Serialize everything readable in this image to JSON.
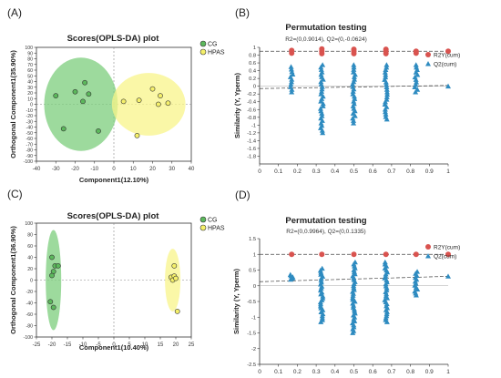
{
  "colors": {
    "cg_fill": "#5cb85c",
    "cg_ellipse": "#7ccd7c",
    "hpas_fill": "#f5f06a",
    "hpas_ellipse": "#f8f48a",
    "r2_marker": "#d9534f",
    "q2_marker": "#2e8bc0",
    "axis": "#333333",
    "refline": "#888888"
  },
  "chart_data": [
    {
      "panel_label": "(A)",
      "type": "scatter",
      "title": "Scores(OPLS-DA) plot",
      "xlabel": "Component1(12.10%)",
      "ylabel": "Orthogonal Component1(35.90%)",
      "xlim": [
        -40,
        40
      ],
      "ylim": [
        -100,
        100
      ],
      "xticks": [
        -40,
        -30,
        -20,
        -10,
        0,
        10,
        20,
        30,
        40
      ],
      "yticks": [
        -100,
        -90,
        -80,
        -70,
        -60,
        -50,
        -40,
        -30,
        -20,
        -10,
        0,
        10,
        20,
        30,
        40,
        50,
        60,
        70,
        80,
        90,
        100
      ],
      "legend_position": "top-right",
      "series": [
        {
          "name": "CG",
          "color": "green",
          "points": [
            [
              -30,
              15
            ],
            [
              -20,
              22
            ],
            [
              -15,
              38
            ],
            [
              -13,
              18
            ],
            [
              -16,
              5
            ],
            [
              -26,
              -43
            ],
            [
              -8,
              -47
            ]
          ],
          "ellipse": {
            "cx": -17,
            "cy": 0,
            "rx": 19,
            "ry": 82
          }
        },
        {
          "name": "HPAS",
          "color": "yellow",
          "points": [
            [
              5,
              5
            ],
            [
              13,
              7
            ],
            [
              20,
              27
            ],
            [
              24,
              15
            ],
            [
              23,
              0
            ],
            [
              28,
              2
            ],
            [
              12,
              -55
            ]
          ],
          "ellipse": {
            "cx": 18,
            "cy": 0,
            "rx": 19,
            "ry": 55
          }
        }
      ]
    },
    {
      "panel_label": "(B)",
      "type": "scatter",
      "title": "Permutation testing",
      "subtitle": "R2=(0,0.9014), Q2=(0,-0.0624)",
      "xlabel": "",
      "ylabel": "Similarity (Y, Yperm)",
      "xlim": [
        0,
        1
      ],
      "ylim": [
        -2,
        1
      ],
      "xticks": [
        0,
        0.1,
        0.2,
        0.3,
        0.4,
        0.5,
        0.6,
        0.7,
        0.8,
        0.9,
        1
      ],
      "yticks": [
        -1.8,
        -1.6,
        -1.4,
        -1.2,
        -1,
        -0.8,
        -0.6,
        -0.4,
        -0.2,
        0,
        0.2,
        0.4,
        0.6,
        0.8,
        1
      ],
      "legend_position": "top-right",
      "series": [
        {
          "name": "R2Y(cum)",
          "marker": "circle",
          "x": [
            0.17,
            0.33,
            0.5,
            0.67,
            0.83,
            1.0
          ],
          "points": [
            [
              0.17,
              0.85
            ],
            [
              0.17,
              0.92
            ],
            [
              0.33,
              0.84
            ],
            [
              0.33,
              0.9
            ],
            [
              0.33,
              0.96
            ],
            [
              0.5,
              0.84
            ],
            [
              0.5,
              0.9
            ],
            [
              0.5,
              0.95
            ],
            [
              0.67,
              0.84
            ],
            [
              0.67,
              0.9
            ],
            [
              0.67,
              0.95
            ],
            [
              0.83,
              0.85
            ],
            [
              0.83,
              0.9
            ],
            [
              1.0,
              0.9
            ]
          ],
          "trend": [
            [
              0,
              0.9
            ],
            [
              1,
              0.9
            ]
          ]
        },
        {
          "name": "Q2(cum)",
          "marker": "triangle",
          "columns": [
            {
              "x": 0.17,
              "min": -0.15,
              "max": 0.5
            },
            {
              "x": 0.33,
              "min": -1.2,
              "max": 0.55
            },
            {
              "x": 0.5,
              "min": -0.95,
              "max": 0.55
            },
            {
              "x": 0.67,
              "min": -0.85,
              "max": 0.55
            },
            {
              "x": 0.83,
              "min": -0.15,
              "max": 0.55
            }
          ],
          "points": [
            [
              1.0,
              0.0
            ]
          ],
          "trend": [
            [
              0,
              -0.06
            ],
            [
              1,
              0.02
            ]
          ]
        }
      ]
    },
    {
      "panel_label": "(C)",
      "type": "scatter",
      "title": "Scores(OPLS-DA) plot",
      "xlabel": "Component1(10.40%)",
      "ylabel": "Orthogonal Component1(36.90%)",
      "xlim": [
        -25,
        25
      ],
      "ylim": [
        -100,
        100
      ],
      "xticks": [
        -25,
        -20,
        -15,
        -10,
        -5,
        0,
        5,
        10,
        15,
        20,
        25
      ],
      "yticks": [
        -100,
        -80,
        -60,
        -40,
        -20,
        0,
        20,
        40,
        60,
        80,
        100
      ],
      "legend_position": "top-right",
      "series": [
        {
          "name": "CG",
          "color": "green",
          "points": [
            [
              -20,
              40
            ],
            [
              -19,
              25
            ],
            [
              -19.5,
              15
            ],
            [
              -18,
              25
            ],
            [
              -20,
              8
            ],
            [
              -20.5,
              -38
            ],
            [
              -19.5,
              -48
            ]
          ],
          "ellipse": {
            "cx": -19.5,
            "cy": 0,
            "rx": 2.5,
            "ry": 88
          }
        },
        {
          "name": "HPAS",
          "color": "yellow",
          "points": [
            [
              19.5,
              25
            ],
            [
              18.5,
              5
            ],
            [
              19,
              0
            ],
            [
              19.5,
              7
            ],
            [
              20,
              3
            ],
            [
              20.5,
              -55
            ]
          ],
          "ellipse": {
            "cx": 19,
            "cy": 0,
            "rx": 2.5,
            "ry": 55
          }
        }
      ]
    },
    {
      "panel_label": "(D)",
      "type": "scatter",
      "title": "Permutation testing",
      "subtitle": "R2=(0,0.9964), Q2=(0,0.1335)",
      "xlabel": "",
      "ylabel": "Similarity (Y, Yperm)",
      "xlim": [
        0,
        1
      ],
      "ylim": [
        -2.5,
        1.5
      ],
      "xticks": [
        0,
        0.1,
        0.2,
        0.3,
        0.4,
        0.5,
        0.6,
        0.7,
        0.8,
        0.9,
        1
      ],
      "yticks": [
        -2.5,
        -2,
        -1.5,
        -1,
        -0.5,
        0,
        0.5,
        1,
        1.5
      ],
      "legend_position": "top-right",
      "series": [
        {
          "name": "R2Y(cum)",
          "marker": "circle",
          "points": [
            [
              0.17,
              1.0
            ],
            [
              0.33,
              1.0
            ],
            [
              0.5,
              1.0
            ],
            [
              0.67,
              1.0
            ],
            [
              0.83,
              1.0
            ],
            [
              1.0,
              1.0
            ]
          ],
          "trend": [
            [
              0,
              1.0
            ],
            [
              1,
              1.0
            ]
          ]
        },
        {
          "name": "Q2(cum)",
          "marker": "triangle",
          "columns": [
            {
              "x": 0.17,
              "min": 0.2,
              "max": 0.35
            },
            {
              "x": 0.33,
              "min": -1.15,
              "max": 0.55
            },
            {
              "x": 0.5,
              "min": -1.5,
              "max": 0.75
            },
            {
              "x": 0.67,
              "min": -1.15,
              "max": 0.75
            },
            {
              "x": 0.83,
              "min": -0.3,
              "max": 0.45
            }
          ],
          "points": [
            [
              1.0,
              0.3
            ]
          ],
          "trend": [
            [
              0,
              0.13
            ],
            [
              1,
              0.3
            ]
          ]
        }
      ]
    }
  ]
}
